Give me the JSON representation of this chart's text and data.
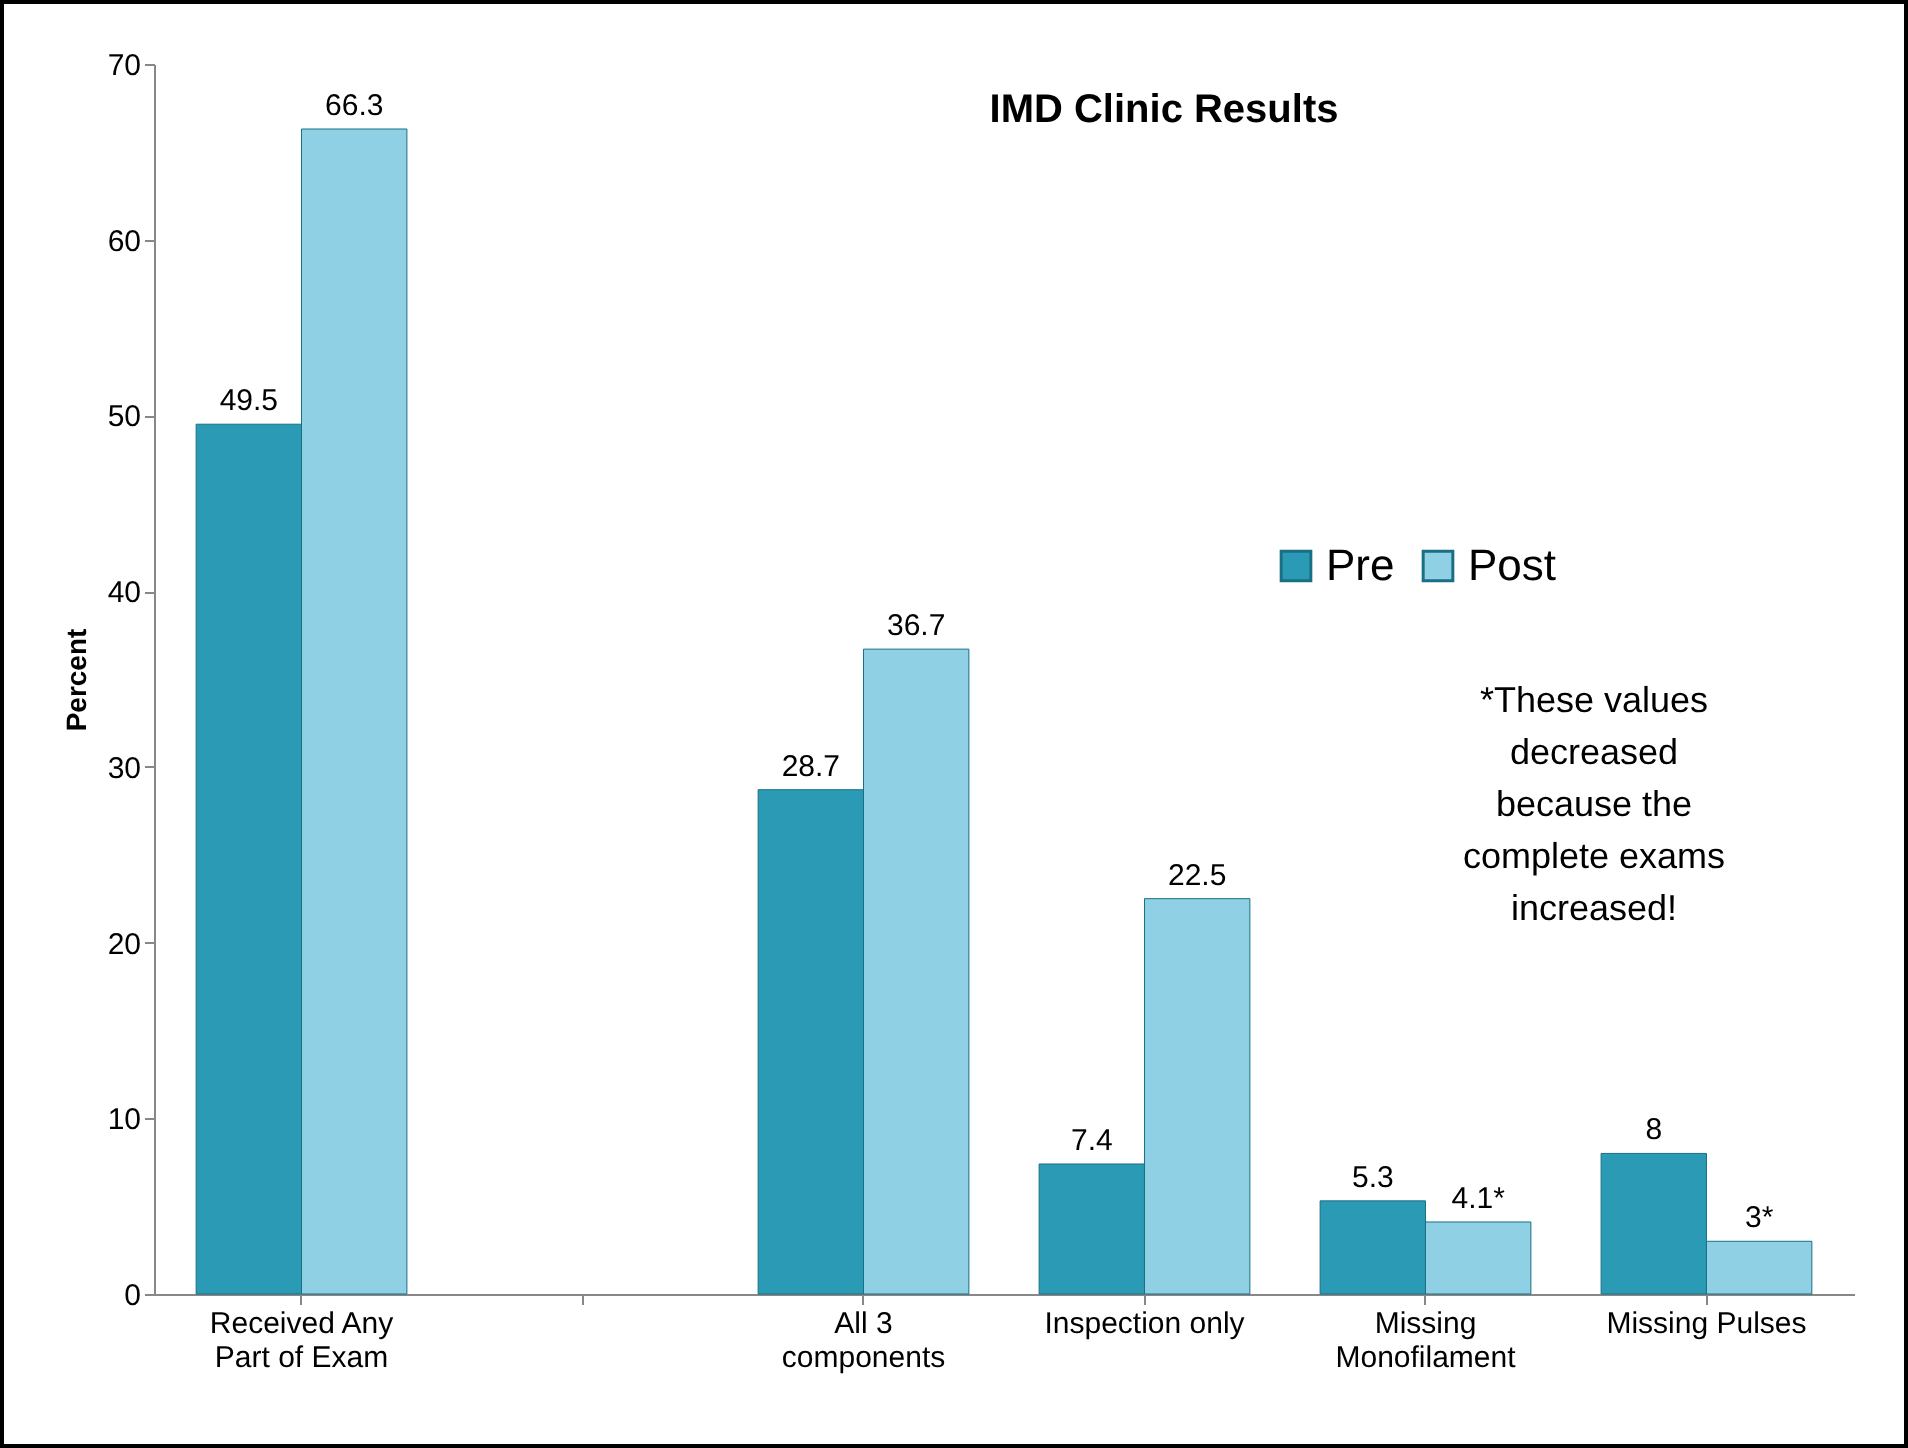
{
  "chart_data": {
    "type": "bar",
    "title": "IMD Clinic Results",
    "ylabel": "Percent",
    "categories": [
      "Received Any Part of Exam",
      null,
      "All 3 components",
      "Inspection only",
      "Missing Monofilament",
      "Missing Pulses"
    ],
    "series": [
      {
        "name": "Pre",
        "color": "#2b9ab4",
        "values": [
          49.5,
          null,
          28.7,
          7.4,
          5.3,
          8
        ],
        "value_labels": [
          "49.5",
          null,
          "28.7",
          "7.4",
          "5.3",
          "8"
        ]
      },
      {
        "name": "Post",
        "color": "#8fd0e4",
        "values": [
          66.3,
          null,
          36.7,
          22.5,
          4.1,
          3
        ],
        "value_labels": [
          "66.3",
          null,
          "36.7",
          "22.5",
          "4.1*",
          "3*"
        ]
      }
    ],
    "ylim": [
      0,
      70
    ],
    "yticks": [
      0,
      10,
      20,
      30,
      40,
      50,
      60,
      70
    ],
    "grid": false,
    "legend": "right",
    "annotations": [
      "*These values decreased because the complete exams increased!"
    ]
  }
}
